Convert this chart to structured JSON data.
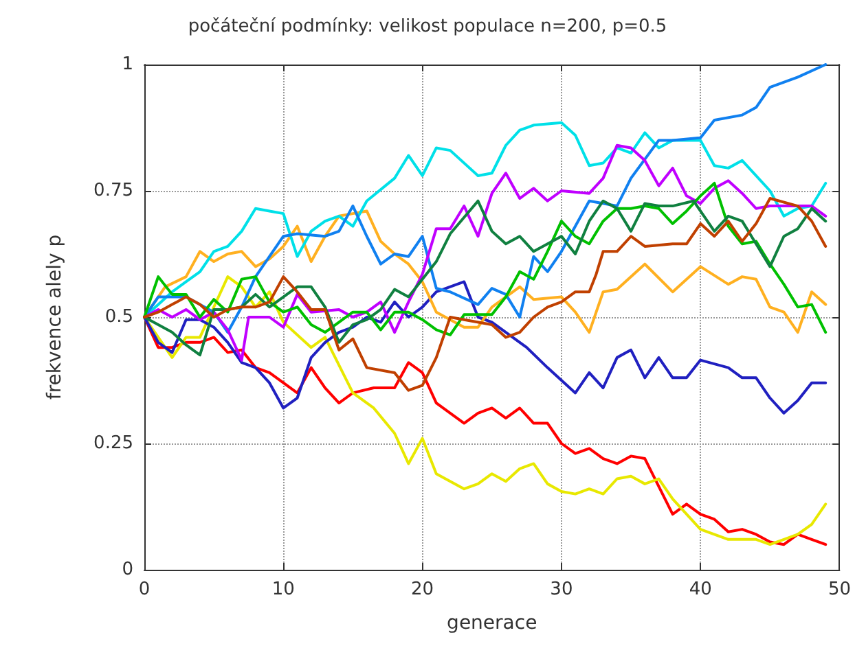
{
  "chart_data": {
    "type": "line",
    "title": "počáteční podmínky: velikost populace n=200, p=0.5",
    "xlabel": "generace",
    "ylabel": "frekvence alely p",
    "xlim": [
      0,
      50
    ],
    "xticks": [
      0,
      10,
      20,
      30,
      40,
      50
    ],
    "ylim": [
      0,
      1
    ],
    "yticks": [
      0,
      0.25,
      0.5,
      0.75,
      1
    ],
    "grid": true,
    "marker": "none",
    "line_style": "solid",
    "series": [
      {
        "color": "#ff0000",
        "x": [
          0,
          1,
          2,
          3,
          4,
          5,
          6,
          7,
          8,
          9,
          10,
          11,
          12,
          13,
          14,
          15,
          16.5,
          18,
          19,
          20,
          21,
          23,
          24,
          25,
          26,
          27,
          28,
          29,
          30,
          31,
          32,
          33,
          34,
          35,
          36,
          38,
          39,
          40,
          41,
          42,
          43,
          44,
          45,
          46,
          47,
          48,
          49
        ],
        "values": [
          0.5,
          0.44,
          0.44,
          0.45,
          0.45,
          0.46,
          0.43,
          0.435,
          0.4,
          0.39,
          0.37,
          0.35,
          0.4,
          0.36,
          0.33,
          0.35,
          0.36,
          0.36,
          0.41,
          0.39,
          0.33,
          0.29,
          0.31,
          0.32,
          0.3,
          0.32,
          0.29,
          0.29,
          0.25,
          0.23,
          0.24,
          0.22,
          0.21,
          0.225,
          0.22,
          0.11,
          0.13,
          0.11,
          0.1,
          0.075,
          0.08,
          0.07,
          0.055,
          0.05,
          0.07,
          0.06,
          0.05
        ]
      },
      {
        "color": "#e8e800",
        "x": [
          0,
          1,
          2,
          3,
          4,
          5,
          6,
          7,
          8,
          9,
          10,
          12,
          13,
          15,
          16.5,
          18,
          19,
          20,
          21,
          23,
          24,
          25,
          26,
          27,
          28,
          29,
          30,
          31,
          32,
          33,
          34,
          35,
          36,
          37,
          38,
          40,
          42,
          44,
          45,
          46,
          47,
          48,
          49
        ],
        "values": [
          0.5,
          0.46,
          0.42,
          0.46,
          0.46,
          0.52,
          0.58,
          0.56,
          0.52,
          0.55,
          0.49,
          0.44,
          0.46,
          0.35,
          0.32,
          0.27,
          0.21,
          0.26,
          0.19,
          0.16,
          0.17,
          0.19,
          0.175,
          0.2,
          0.21,
          0.17,
          0.155,
          0.15,
          0.16,
          0.15,
          0.18,
          0.185,
          0.17,
          0.18,
          0.14,
          0.08,
          0.06,
          0.06,
          0.05,
          0.06,
          0.07,
          0.09,
          0.13
        ]
      },
      {
        "color": "#2020c0",
        "x": [
          0,
          1,
          2,
          3,
          4,
          5,
          6,
          7,
          8,
          9,
          10,
          11,
          12,
          13,
          14,
          15,
          16,
          17,
          18,
          19,
          20,
          21,
          23,
          24,
          25,
          26,
          27.5,
          29,
          31,
          32,
          33,
          34,
          35,
          36,
          37,
          38,
          39,
          40,
          42,
          43,
          44,
          45,
          46,
          47,
          48,
          49
        ],
        "values": [
          0.5,
          0.45,
          0.43,
          0.495,
          0.495,
          0.48,
          0.45,
          0.41,
          0.4,
          0.37,
          0.32,
          0.34,
          0.42,
          0.45,
          0.47,
          0.48,
          0.5,
          0.49,
          0.53,
          0.5,
          0.52,
          0.55,
          0.57,
          0.5,
          0.49,
          0.47,
          0.44,
          0.4,
          0.35,
          0.39,
          0.36,
          0.42,
          0.435,
          0.38,
          0.42,
          0.38,
          0.38,
          0.415,
          0.4,
          0.38,
          0.38,
          0.34,
          0.31,
          0.335,
          0.37,
          0.37
        ]
      },
      {
        "color": "#ffb020",
        "x": [
          0,
          1.5,
          3,
          4,
          5,
          6,
          7,
          8,
          9,
          10,
          11,
          12,
          13,
          14,
          15,
          16,
          17,
          18,
          19,
          20,
          21,
          22,
          23,
          24,
          25,
          27,
          28,
          30,
          31,
          32,
          33,
          34,
          36,
          38,
          40,
          42,
          43,
          44,
          45,
          46,
          47,
          48,
          49
        ],
        "values": [
          0.5,
          0.56,
          0.58,
          0.63,
          0.61,
          0.625,
          0.63,
          0.6,
          0.615,
          0.64,
          0.68,
          0.61,
          0.66,
          0.7,
          0.705,
          0.71,
          0.65,
          0.625,
          0.605,
          0.57,
          0.51,
          0.495,
          0.48,
          0.48,
          0.52,
          0.56,
          0.535,
          0.54,
          0.51,
          0.47,
          0.55,
          0.555,
          0.605,
          0.55,
          0.6,
          0.565,
          0.58,
          0.575,
          0.52,
          0.51,
          0.47,
          0.55,
          0.525
        ]
      },
      {
        "color": "#00e0e8",
        "x": [
          0,
          2,
          3,
          4,
          5,
          6,
          7,
          8,
          9,
          10,
          11,
          12,
          13,
          14,
          15,
          16,
          18,
          19,
          20,
          21,
          22,
          24,
          25,
          26,
          27,
          28,
          30,
          31,
          32,
          33,
          34,
          35,
          36,
          37,
          38,
          40,
          41,
          42,
          43,
          45,
          46,
          47,
          48,
          49
        ],
        "values": [
          0.5,
          0.55,
          0.57,
          0.59,
          0.63,
          0.64,
          0.67,
          0.715,
          0.71,
          0.705,
          0.62,
          0.67,
          0.69,
          0.7,
          0.68,
          0.73,
          0.775,
          0.82,
          0.78,
          0.835,
          0.83,
          0.78,
          0.785,
          0.84,
          0.87,
          0.88,
          0.885,
          0.86,
          0.8,
          0.805,
          0.835,
          0.825,
          0.865,
          0.835,
          0.85,
          0.85,
          0.8,
          0.795,
          0.81,
          0.75,
          0.7,
          0.715,
          0.72,
          0.765
        ]
      },
      {
        "color": "#1080f0",
        "x": [
          0,
          1,
          3,
          5,
          6,
          7,
          8,
          10,
          11,
          13,
          14,
          15,
          16,
          17,
          18,
          19,
          20,
          21,
          22,
          24,
          25,
          26,
          27,
          28,
          29,
          30,
          32,
          34,
          35,
          37,
          38,
          40,
          41,
          43,
          44,
          45,
          47,
          49
        ],
        "values": [
          0.5,
          0.54,
          0.54,
          0.51,
          0.47,
          0.52,
          0.58,
          0.66,
          0.665,
          0.66,
          0.67,
          0.72,
          0.66,
          0.605,
          0.625,
          0.62,
          0.66,
          0.557,
          0.55,
          0.525,
          0.557,
          0.545,
          0.5,
          0.62,
          0.59,
          0.63,
          0.73,
          0.72,
          0.775,
          0.85,
          0.85,
          0.855,
          0.89,
          0.9,
          0.915,
          0.955,
          0.975,
          1.0
        ]
      },
      {
        "color": "#c000ff",
        "x": [
          0,
          1,
          2,
          3,
          4,
          5,
          6,
          7,
          7.5,
          9,
          10,
          11,
          12,
          14,
          15,
          16,
          17,
          18,
          19,
          20,
          21,
          22,
          23,
          24,
          25,
          26,
          27,
          28,
          29,
          30,
          32,
          33,
          34,
          35,
          36,
          37,
          38,
          39,
          40,
          41,
          42,
          43,
          44,
          45,
          47,
          48,
          49
        ],
        "values": [
          0.5,
          0.515,
          0.5,
          0.515,
          0.495,
          0.51,
          0.475,
          0.415,
          0.5,
          0.5,
          0.48,
          0.545,
          0.51,
          0.515,
          0.5,
          0.51,
          0.53,
          0.47,
          0.53,
          0.585,
          0.675,
          0.675,
          0.72,
          0.66,
          0.745,
          0.785,
          0.735,
          0.755,
          0.73,
          0.75,
          0.745,
          0.775,
          0.84,
          0.835,
          0.81,
          0.76,
          0.795,
          0.74,
          0.725,
          0.755,
          0.77,
          0.745,
          0.715,
          0.72,
          0.72,
          0.72,
          0.7
        ]
      },
      {
        "color": "#00c000",
        "x": [
          0,
          1,
          2,
          3,
          4,
          5,
          6,
          7,
          8,
          9,
          10,
          11,
          12,
          13,
          14,
          15,
          16,
          17,
          18,
          19,
          20,
          21,
          22,
          23,
          25,
          26,
          27,
          28,
          29,
          30,
          31,
          32,
          33,
          34,
          35,
          36,
          37,
          38,
          39,
          40,
          41,
          42,
          43,
          44,
          45,
          46,
          47,
          48,
          49
        ],
        "values": [
          0.5,
          0.58,
          0.545,
          0.545,
          0.5,
          0.535,
          0.51,
          0.575,
          0.58,
          0.53,
          0.51,
          0.52,
          0.485,
          0.47,
          0.49,
          0.51,
          0.51,
          0.475,
          0.51,
          0.51,
          0.495,
          0.475,
          0.465,
          0.505,
          0.505,
          0.54,
          0.59,
          0.575,
          0.63,
          0.69,
          0.66,
          0.645,
          0.69,
          0.715,
          0.715,
          0.72,
          0.715,
          0.685,
          0.71,
          0.74,
          0.765,
          0.68,
          0.645,
          0.65,
          0.605,
          0.565,
          0.52,
          0.525,
          0.47
        ]
      },
      {
        "color": "#108040",
        "x": [
          0,
          1,
          2,
          3,
          4,
          5,
          6,
          7,
          8,
          9,
          10,
          11,
          12,
          13,
          14,
          15,
          16,
          17,
          18,
          19,
          20,
          21,
          22,
          24,
          25,
          26,
          27,
          28,
          29,
          30,
          31,
          32,
          33,
          34,
          35,
          36,
          37,
          38,
          39.5,
          41,
          42,
          43,
          44,
          45,
          46,
          47,
          48,
          49
        ],
        "values": [
          0.5,
          0.485,
          0.47,
          0.445,
          0.425,
          0.515,
          0.515,
          0.52,
          0.545,
          0.52,
          0.54,
          0.56,
          0.56,
          0.52,
          0.45,
          0.485,
          0.495,
          0.515,
          0.555,
          0.54,
          0.575,
          0.61,
          0.665,
          0.73,
          0.67,
          0.645,
          0.66,
          0.63,
          0.645,
          0.66,
          0.625,
          0.69,
          0.73,
          0.715,
          0.67,
          0.725,
          0.72,
          0.72,
          0.73,
          0.67,
          0.7,
          0.69,
          0.645,
          0.6,
          0.66,
          0.675,
          0.715,
          0.69
        ]
      },
      {
        "color": "#c04000",
        "x": [
          0,
          1,
          2,
          3,
          4,
          5,
          6,
          7,
          8,
          9,
          10,
          11,
          12,
          13,
          14,
          15,
          16,
          18,
          19,
          20,
          21,
          22,
          23,
          25,
          26,
          27,
          28,
          29,
          30,
          31,
          32,
          32.5,
          33,
          34,
          35,
          36,
          38,
          39,
          40,
          41,
          42,
          43,
          44,
          45,
          47,
          48,
          49
        ],
        "values": [
          0.5,
          0.51,
          0.525,
          0.54,
          0.525,
          0.5,
          0.515,
          0.52,
          0.52,
          0.53,
          0.58,
          0.55,
          0.515,
          0.515,
          0.435,
          0.457,
          0.4,
          0.39,
          0.355,
          0.365,
          0.42,
          0.5,
          0.495,
          0.485,
          0.46,
          0.47,
          0.5,
          0.52,
          0.53,
          0.55,
          0.55,
          0.585,
          0.63,
          0.63,
          0.66,
          0.64,
          0.645,
          0.645,
          0.685,
          0.66,
          0.69,
          0.65,
          0.685,
          0.735,
          0.72,
          0.69,
          0.64
        ]
      }
    ]
  }
}
